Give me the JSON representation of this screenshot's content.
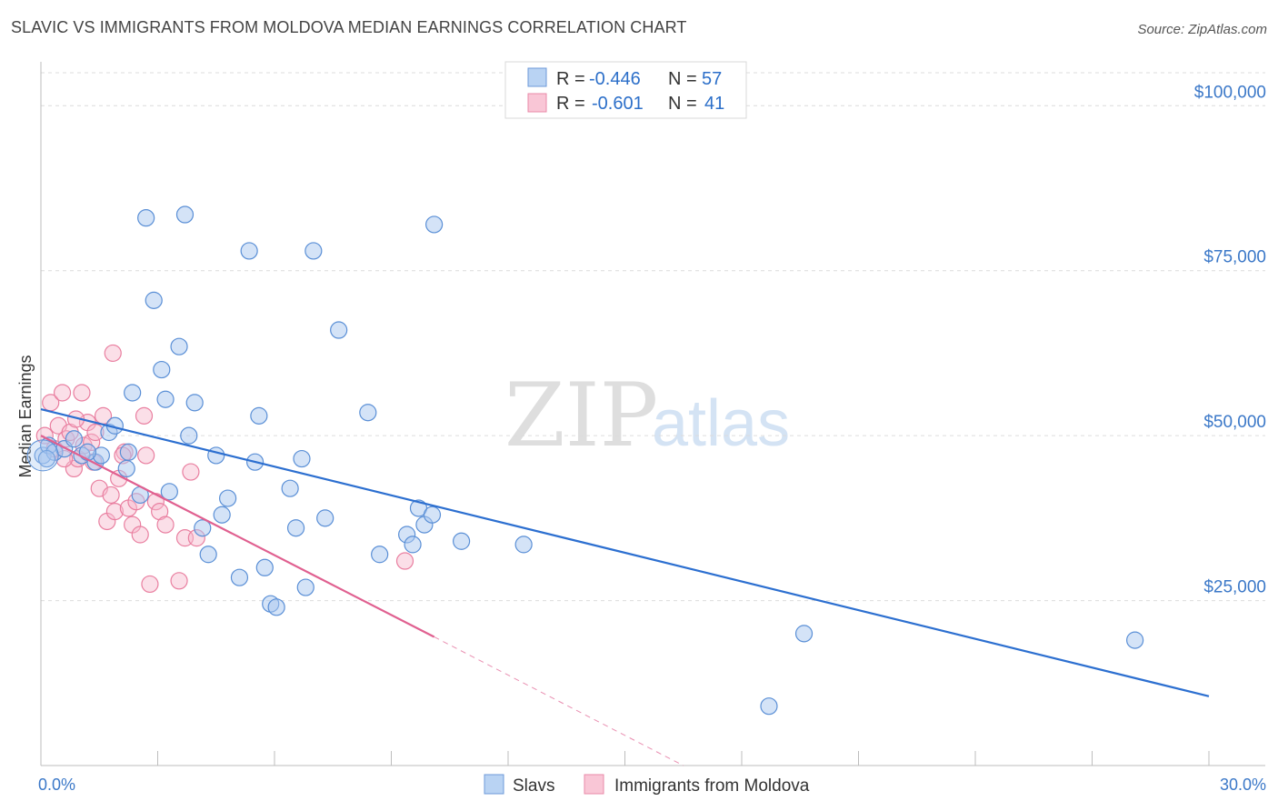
{
  "header": {
    "title": "SLAVIC VS IMMIGRANTS FROM MOLDOVA MEDIAN EARNINGS CORRELATION CHART",
    "source": "Source: ZipAtlas.com"
  },
  "watermark": {
    "zip": "ZIP",
    "atlas": "atlas"
  },
  "legend_box": {
    "rows": [
      {
        "r_label": "R =",
        "r_value": "-0.446",
        "n_label": "N =",
        "n_value": "57"
      },
      {
        "r_label": "R =",
        "r_value": "-0.601",
        "n_label": "N =",
        "n_value": "41"
      }
    ]
  },
  "bottom_legend": {
    "series1": "Slavs",
    "series2": "Immigrants from Moldova"
  },
  "chart_data": {
    "type": "scatter",
    "title": "SLAVIC VS IMMIGRANTS FROM MOLDOVA MEDIAN EARNINGS CORRELATION CHART",
    "ylabel": "Median Earnings",
    "xlabel": "",
    "xlim": [
      0,
      30
    ],
    "ylim": [
      0,
      105000
    ],
    "x_tick_labels": [
      "0.0%",
      "30.0%"
    ],
    "y_ticks": [
      {
        "value": 25000,
        "label": "$25,000"
      },
      {
        "value": 50000,
        "label": "$50,000"
      },
      {
        "value": 75000,
        "label": "$75,000"
      },
      {
        "value": 100000,
        "label": "$100,000"
      }
    ],
    "grid": true,
    "legend_position": "top-center",
    "colors": {
      "slavs_fill": "#a9c8f0",
      "slavs_stroke": "#5a8fd6",
      "slavs_line": "#2c6fd0",
      "moldova_fill": "#f6b8cc",
      "moldova_stroke": "#e97fa0",
      "moldova_line": "#e06090"
    },
    "series": [
      {
        "name": "Slavs",
        "r": -0.446,
        "n": 57,
        "points": [
          [
            0.05,
            47000
          ],
          [
            0.2,
            48500
          ],
          [
            0.35,
            47500
          ],
          [
            0.6,
            48000
          ],
          [
            0.85,
            49500
          ],
          [
            1.05,
            47000
          ],
          [
            1.4,
            46000
          ],
          [
            1.55,
            47000
          ],
          [
            1.75,
            50500
          ],
          [
            1.9,
            51500
          ],
          [
            2.2,
            45000
          ],
          [
            2.35,
            56500
          ],
          [
            2.55,
            41000
          ],
          [
            2.7,
            83000
          ],
          [
            2.9,
            70500
          ],
          [
            3.1,
            60000
          ],
          [
            3.2,
            55500
          ],
          [
            3.3,
            41500
          ],
          [
            3.55,
            63500
          ],
          [
            3.7,
            83500
          ],
          [
            3.8,
            50000
          ],
          [
            3.95,
            55000
          ],
          [
            4.15,
            36000
          ],
          [
            4.3,
            32000
          ],
          [
            4.5,
            47000
          ],
          [
            4.65,
            38000
          ],
          [
            4.8,
            40500
          ],
          [
            5.1,
            28500
          ],
          [
            5.35,
            78000
          ],
          [
            5.5,
            46000
          ],
          [
            5.6,
            53000
          ],
          [
            5.75,
            30000
          ],
          [
            5.9,
            24500
          ],
          [
            6.05,
            24000
          ],
          [
            6.4,
            42000
          ],
          [
            6.55,
            36000
          ],
          [
            6.7,
            46500
          ],
          [
            6.8,
            27000
          ],
          [
            7.0,
            78000
          ],
          [
            7.3,
            37500
          ],
          [
            7.65,
            66000
          ],
          [
            8.4,
            53500
          ],
          [
            8.7,
            32000
          ],
          [
            9.4,
            35000
          ],
          [
            9.55,
            33500
          ],
          [
            9.7,
            39000
          ],
          [
            9.85,
            36500
          ],
          [
            10.05,
            38000
          ],
          [
            10.1,
            82000
          ],
          [
            10.8,
            34000
          ],
          [
            12.4,
            33500
          ],
          [
            18.7,
            9000
          ],
          [
            19.6,
            20000
          ],
          [
            28.1,
            19000
          ],
          [
            0.15,
            46500
          ],
          [
            1.2,
            47500
          ],
          [
            2.25,
            47500
          ]
        ],
        "trend": {
          "x": [
            0,
            30
          ],
          "y": [
            54000,
            10500
          ]
        }
      },
      {
        "name": "Immigrants from Moldova",
        "r": -0.601,
        "n": 41,
        "points": [
          [
            0.1,
            50000
          ],
          [
            0.25,
            55000
          ],
          [
            0.35,
            48000
          ],
          [
            0.45,
            51500
          ],
          [
            0.55,
            56500
          ],
          [
            0.65,
            49500
          ],
          [
            0.75,
            50500
          ],
          [
            0.85,
            45000
          ],
          [
            0.95,
            46500
          ],
          [
            1.05,
            56500
          ],
          [
            1.1,
            48500
          ],
          [
            1.2,
            52000
          ],
          [
            1.3,
            49000
          ],
          [
            1.4,
            50500
          ],
          [
            1.5,
            42000
          ],
          [
            1.6,
            53000
          ],
          [
            1.7,
            37000
          ],
          [
            1.8,
            41000
          ],
          [
            1.9,
            38500
          ],
          [
            2.0,
            43500
          ],
          [
            2.15,
            47500
          ],
          [
            2.25,
            39000
          ],
          [
            2.35,
            36500
          ],
          [
            2.45,
            40000
          ],
          [
            2.55,
            35000
          ],
          [
            2.65,
            53000
          ],
          [
            2.8,
            27500
          ],
          [
            2.95,
            40000
          ],
          [
            3.05,
            38500
          ],
          [
            3.2,
            36500
          ],
          [
            3.55,
            28000
          ],
          [
            3.7,
            34500
          ],
          [
            3.85,
            44500
          ],
          [
            1.85,
            62500
          ],
          [
            2.1,
            47000
          ],
          [
            0.6,
            46500
          ],
          [
            0.9,
            52500
          ],
          [
            1.35,
            46000
          ],
          [
            2.7,
            47000
          ],
          [
            4.0,
            34500
          ],
          [
            9.35,
            31000
          ]
        ],
        "trend": {
          "x": [
            0,
            10.1
          ],
          "y": [
            50000,
            19500
          ]
        },
        "trend_extension": {
          "x": [
            10.1,
            16.5
          ],
          "y": [
            19500,
            0
          ]
        }
      }
    ]
  }
}
